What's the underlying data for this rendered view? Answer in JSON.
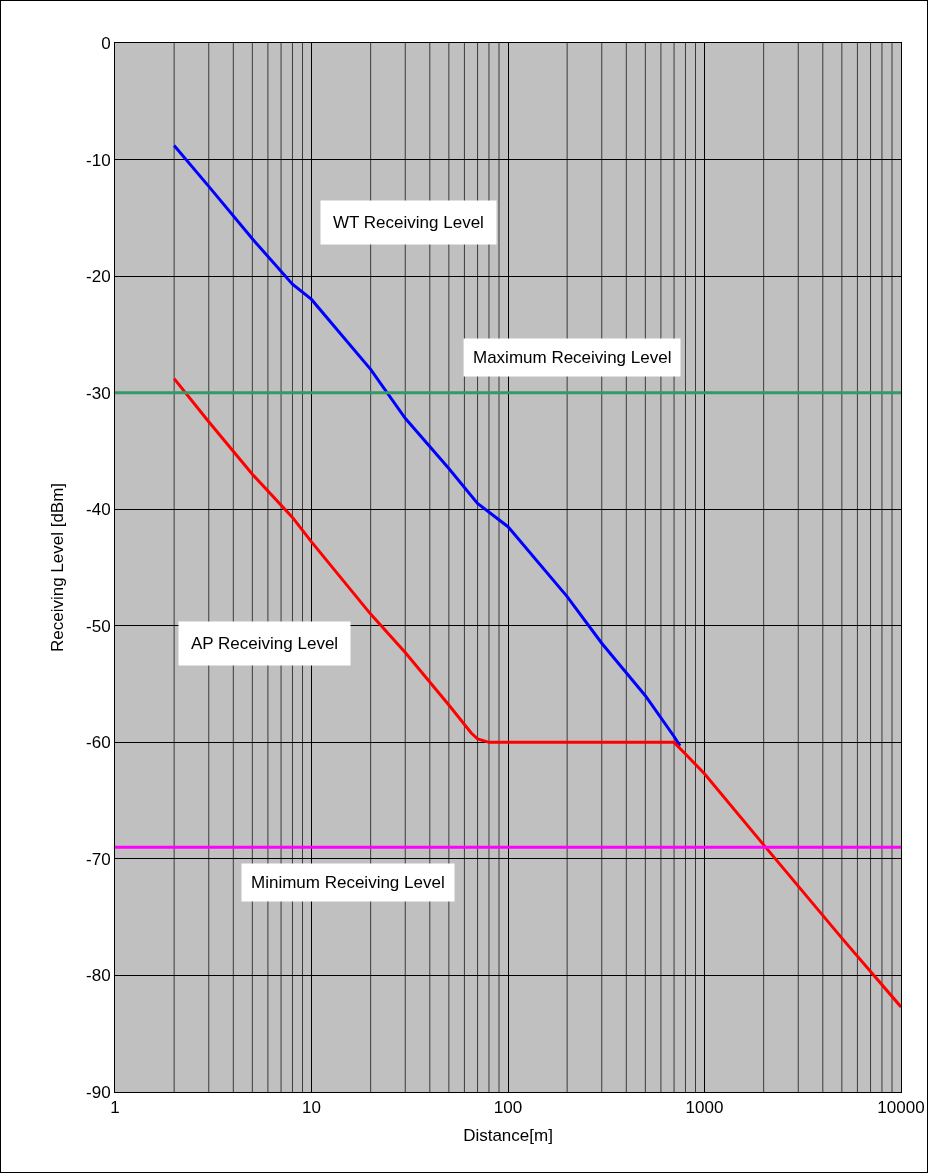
{
  "chart_data": {
    "type": "line",
    "xlabel": "Distance[m]",
    "ylabel": "Receiving Level [dBm]",
    "log": "x",
    "grid": true,
    "marker": "none",
    "line_style": "solid",
    "xlim": [
      1,
      10000
    ],
    "xticks": [
      1,
      10,
      100,
      1000,
      10000
    ],
    "ylim": [
      -90,
      0
    ],
    "yticks": [
      -90,
      -80,
      -70,
      -60,
      -50,
      -40,
      -30,
      -20,
      -10,
      0
    ],
    "series": [
      {
        "color": "#0000ff",
        "x": [
          2,
          3,
          5,
          8,
          10,
          20,
          30,
          50,
          70,
          100,
          200,
          300,
          500,
          700,
          750
        ],
        "values": [
          -8.8,
          -12.3,
          -16.8,
          -20.7,
          -22,
          -28,
          -32.2,
          -36.5,
          -39.5,
          -41.5,
          -47.5,
          -51.5,
          -56,
          -59.5,
          -60.3
        ]
      },
      {
        "color": "#ff0000",
        "x": [
          2,
          3,
          5,
          8,
          10,
          20,
          30,
          50,
          65,
          70,
          80,
          100,
          700,
          800,
          1000,
          2000,
          5000,
          10000
        ],
        "values": [
          -28.8,
          -32.5,
          -37,
          -40.7,
          -42.8,
          -49,
          -52.3,
          -56.8,
          -59.2,
          -59.7,
          -60,
          -60,
          -60,
          -61,
          -62.7,
          -68.8,
          -76.8,
          -82.7
        ]
      }
    ],
    "ref_lines": [
      {
        "axis": "y",
        "value": -30,
        "label": "Maximum Receiving Level",
        "color": "#339966"
      },
      {
        "axis": "y",
        "value": -69,
        "label": "Minimum Receiving Level",
        "color": "#ff00ff"
      }
    ],
    "annotations": [
      "WT Receiving Level",
      "AP Receiving Level"
    ]
  }
}
